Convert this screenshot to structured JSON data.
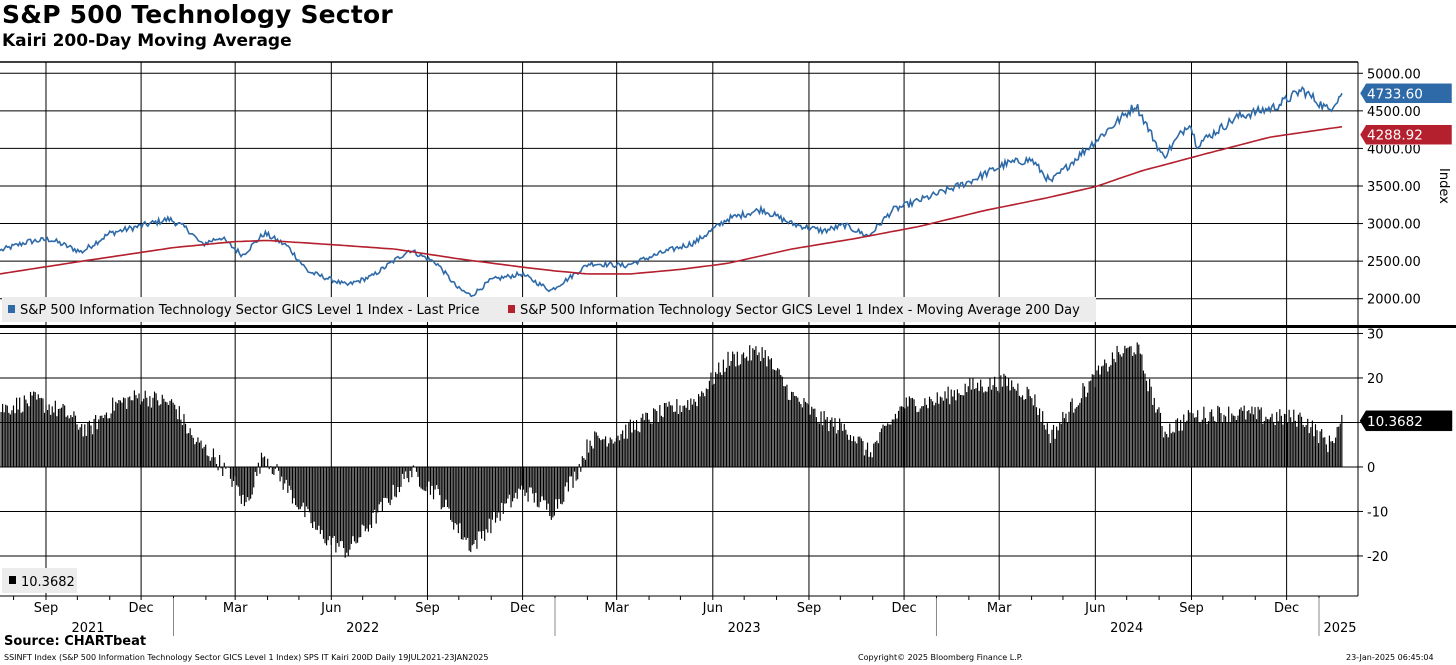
{
  "header": {
    "title": "S&P 500 Technology Sector",
    "subtitle": "Kairi 200-Day Moving Average"
  },
  "footer": {
    "source": "Source: CHARTbeat",
    "ticker_line": "SSINFT Index (S&P 500 Information Technology Sector GICS Level 1 Index) SPS IT Kairi 200D  Daily 19JUL2021-23JAN2025",
    "copyright": "Copyright© 2025 Bloomberg Finance L.P.",
    "timestamp": "23-Jan-2025 06:45:04"
  },
  "colors": {
    "price": "#2e6aa8",
    "ma": "#b5202e",
    "kairi": "#000000",
    "grid": "#000000"
  },
  "chart_data": [
    {
      "type": "line",
      "ylabel": "Index",
      "ylim": [
        1650,
        5150
      ],
      "yticks": [
        "5000.00",
        "4500.00",
        "4000.00",
        "3500.00",
        "3000.00",
        "2500.00",
        "2000.00"
      ],
      "yticks_values": [
        5000,
        4500,
        4000,
        3500,
        3000,
        2500,
        2000
      ],
      "grid": true,
      "legend_position": "bottom-left",
      "x_range": [
        "2021-07-19",
        "2025-01-23"
      ],
      "series": [
        {
          "name": "S&P 500 Information Technology Sector GICS Level 1 Index - Last Price",
          "last_value": "4733.60",
          "points": [
            [
              "2021-07-19",
              2640
            ],
            [
              "2021-08-15",
              2760
            ],
            [
              "2021-09-05",
              2790
            ],
            [
              "2021-10-05",
              2620
            ],
            [
              "2021-11-01",
              2870
            ],
            [
              "2021-12-01",
              2970
            ],
            [
              "2021-12-28",
              3060
            ],
            [
              "2022-01-15",
              2920
            ],
            [
              "2022-01-28",
              2720
            ],
            [
              "2022-02-15",
              2820
            ],
            [
              "2022-03-08",
              2580
            ],
            [
              "2022-03-29",
              2870
            ],
            [
              "2022-04-20",
              2700
            ],
            [
              "2022-05-10",
              2360
            ],
            [
              "2022-06-16",
              2180
            ],
            [
              "2022-07-10",
              2300
            ],
            [
              "2022-08-15",
              2650
            ],
            [
              "2022-09-10",
              2470
            ],
            [
              "2022-09-30",
              2140
            ],
            [
              "2022-10-13",
              2040
            ],
            [
              "2022-11-01",
              2250
            ],
            [
              "2022-11-30",
              2330
            ],
            [
              "2022-12-28",
              2110
            ],
            [
              "2023-01-15",
              2280
            ],
            [
              "2023-02-03",
              2470
            ],
            [
              "2023-03-10",
              2440
            ],
            [
              "2023-04-15",
              2620
            ],
            [
              "2023-05-15",
              2750
            ],
            [
              "2023-06-15",
              3060
            ],
            [
              "2023-07-18",
              3190
            ],
            [
              "2023-08-15",
              3000
            ],
            [
              "2023-09-15",
              2900
            ],
            [
              "2023-10-05",
              2980
            ],
            [
              "2023-10-28",
              2830
            ],
            [
              "2023-11-20",
              3180
            ],
            [
              "2023-12-30",
              3380
            ],
            [
              "2024-01-31",
              3550
            ],
            [
              "2024-03-08",
              3800
            ],
            [
              "2024-04-01",
              3850
            ],
            [
              "2024-04-19",
              3550
            ],
            [
              "2024-05-20",
              3950
            ],
            [
              "2024-07-10",
              4580
            ],
            [
              "2024-08-05",
              3880
            ],
            [
              "2024-08-30",
              4350
            ],
            [
              "2024-09-06",
              4050
            ],
            [
              "2024-10-15",
              4420
            ],
            [
              "2024-11-20",
              4550
            ],
            [
              "2024-12-16",
              4780
            ],
            [
              "2025-01-10",
              4510
            ],
            [
              "2025-01-23",
              4733.6
            ]
          ]
        },
        {
          "name": "S&P 500 Information Technology Sector GICS Level 1 Index - Moving Average 200 Day",
          "last_value": "4288.92",
          "points": [
            [
              "2021-07-19",
              2330
            ],
            [
              "2021-10-01",
              2490
            ],
            [
              "2022-01-01",
              2680
            ],
            [
              "2022-03-01",
              2760
            ],
            [
              "2022-04-01",
              2775
            ],
            [
              "2022-06-01",
              2720
            ],
            [
              "2022-08-01",
              2660
            ],
            [
              "2022-10-01",
              2530
            ],
            [
              "2022-12-01",
              2420
            ],
            [
              "2023-01-01",
              2370
            ],
            [
              "2023-02-01",
              2330
            ],
            [
              "2023-03-15",
              2330
            ],
            [
              "2023-05-01",
              2390
            ],
            [
              "2023-06-15",
              2470
            ],
            [
              "2023-08-15",
              2660
            ],
            [
              "2023-10-15",
              2800
            ],
            [
              "2023-12-15",
              2960
            ],
            [
              "2024-02-15",
              3170
            ],
            [
              "2024-04-15",
              3340
            ],
            [
              "2024-06-01",
              3490
            ],
            [
              "2024-07-15",
              3700
            ],
            [
              "2024-09-15",
              3930
            ],
            [
              "2024-11-15",
              4150
            ],
            [
              "2025-01-23",
              4288.92
            ]
          ]
        }
      ]
    },
    {
      "type": "bar",
      "ylim": [
        -29,
        31
      ],
      "yticks": [
        "30",
        "20",
        "10",
        "0",
        "-10",
        "-20"
      ],
      "yticks_values": [
        30,
        20,
        10,
        0,
        -10,
        -20
      ],
      "grid": true,
      "legend_position": "bottom-left",
      "series": [
        {
          "name": "10.3682",
          "last_value": "10.3682",
          "points": [
            [
              "2021-07-19",
              13
            ],
            [
              "2021-08-20",
              15
            ],
            [
              "2021-09-20",
              12
            ],
            [
              "2021-10-10",
              8
            ],
            [
              "2021-11-05",
              14
            ],
            [
              "2021-12-01",
              16
            ],
            [
              "2022-01-01",
              14
            ],
            [
              "2022-01-20",
              6
            ],
            [
              "2022-02-10",
              2
            ],
            [
              "2022-03-01",
              -4
            ],
            [
              "2022-03-10",
              -9
            ],
            [
              "2022-03-28",
              3
            ],
            [
              "2022-04-20",
              -5
            ],
            [
              "2022-05-20",
              -15
            ],
            [
              "2022-06-16",
              -19
            ],
            [
              "2022-07-10",
              -12
            ],
            [
              "2022-08-15",
              -1
            ],
            [
              "2022-09-10",
              -6
            ],
            [
              "2022-09-30",
              -14
            ],
            [
              "2022-10-13",
              -18
            ],
            [
              "2022-11-10",
              -10
            ],
            [
              "2022-12-01",
              -5
            ],
            [
              "2022-12-28",
              -10
            ],
            [
              "2023-01-20",
              -2
            ],
            [
              "2023-02-03",
              6
            ],
            [
              "2023-03-01",
              7
            ],
            [
              "2023-04-01",
              11
            ],
            [
              "2023-05-15",
              15
            ],
            [
              "2023-06-15",
              24
            ],
            [
              "2023-07-18",
              26
            ],
            [
              "2023-08-15",
              16
            ],
            [
              "2023-09-10",
              11
            ],
            [
              "2023-10-10",
              8
            ],
            [
              "2023-10-28",
              3
            ],
            [
              "2023-11-30",
              14
            ],
            [
              "2024-01-01",
              15
            ],
            [
              "2024-02-01",
              18
            ],
            [
              "2024-03-08",
              19
            ],
            [
              "2024-04-01",
              16
            ],
            [
              "2024-04-19",
              7
            ],
            [
              "2024-05-20",
              17
            ],
            [
              "2024-06-20",
              25
            ],
            [
              "2024-07-10",
              27
            ],
            [
              "2024-08-05",
              8
            ],
            [
              "2024-08-30",
              11
            ],
            [
              "2024-09-20",
              12
            ],
            [
              "2024-10-20",
              12
            ],
            [
              "2024-11-20",
              11
            ],
            [
              "2024-12-16",
              11
            ],
            [
              "2025-01-10",
              5
            ],
            [
              "2025-01-23",
              10.3682
            ]
          ]
        }
      ]
    }
  ],
  "x_axis": {
    "months": [
      {
        "label": "Sep",
        "date": "2021-09-01"
      },
      {
        "label": "Dec",
        "date": "2021-12-01"
      },
      {
        "label": "Mar",
        "date": "2022-03-01"
      },
      {
        "label": "Jun",
        "date": "2022-06-01"
      },
      {
        "label": "Sep",
        "date": "2022-09-01"
      },
      {
        "label": "Dec",
        "date": "2022-12-01"
      },
      {
        "label": "Mar",
        "date": "2023-03-01"
      },
      {
        "label": "Jun",
        "date": "2023-06-01"
      },
      {
        "label": "Sep",
        "date": "2023-09-01"
      },
      {
        "label": "Dec",
        "date": "2023-12-01"
      },
      {
        "label": "Mar",
        "date": "2024-03-01"
      },
      {
        "label": "Jun",
        "date": "2024-06-01"
      },
      {
        "label": "Sep",
        "date": "2024-09-01"
      },
      {
        "label": "Dec",
        "date": "2024-12-01"
      }
    ],
    "years": [
      {
        "label": "2021",
        "date": "2021-10-15"
      },
      {
        "label": "2022",
        "date": "2022-07-01"
      },
      {
        "label": "2023",
        "date": "2023-07-01"
      },
      {
        "label": "2024",
        "date": "2024-07-01"
      },
      {
        "label": "2025",
        "date": "2025-01-15"
      }
    ],
    "year_boundaries": [
      "2022-01-01",
      "2023-01-01",
      "2024-01-01",
      "2025-01-01"
    ]
  }
}
